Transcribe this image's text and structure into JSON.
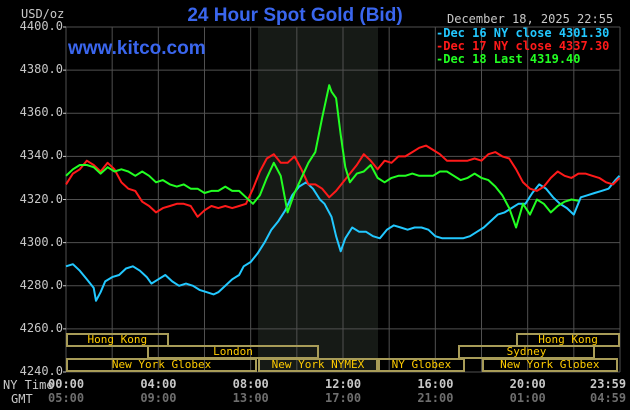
{
  "header": {
    "title": "24 Hour Spot Gold (Bid)",
    "watermark": "www.kitco.com",
    "unit": "USD/oz",
    "datestamp": "December 18, 2025 22:55"
  },
  "legend": [
    {
      "label": "-Dec 16 NY close 4301.30",
      "color": "#22c8ff"
    },
    {
      "label": "-Dec 17 NY close 4337.30",
      "color": "#ff1a1a"
    },
    {
      "label": "-Dec 18 Last 4319.40",
      "color": "#22ff22"
    }
  ],
  "axes": {
    "y_ticks": [
      "4400.0",
      "4380.0",
      "4360.0",
      "4340.0",
      "4320.0",
      "4300.0",
      "4280.0",
      "4260.0",
      "4240.0"
    ],
    "x_row_labels": {
      "ny": "NY Time",
      "gmt": "GMT"
    },
    "x_ticks_ny": [
      "00:00",
      "04:00",
      "08:00",
      "12:00",
      "16:00",
      "20:00",
      "23:59"
    ],
    "x_ticks_gmt": [
      "05:00",
      "09:00",
      "13:00",
      "17:00",
      "21:00",
      "01:00",
      "04:59"
    ]
  },
  "sessions": [
    {
      "label": "Hong Kong",
      "row": 0,
      "start": 0,
      "end": 4.45
    },
    {
      "label": "Hong Kong",
      "row": 0,
      "start": 19.5,
      "end": 24
    },
    {
      "label": "London",
      "row": 1,
      "start": 3.5,
      "end": 10.97
    },
    {
      "label": "Sydney",
      "row": 1,
      "start": 16.98,
      "end": 22.92
    },
    {
      "label": "New York Globex",
      "row": 2,
      "start": 0,
      "end": 8.28
    },
    {
      "label": "New York NYMEX",
      "row": 2,
      "start": 8.33,
      "end": 13.5
    },
    {
      "label": "NY Globex",
      "row": 2,
      "start": 13.52,
      "end": 17.28
    },
    {
      "label": "New York Globex",
      "row": 2,
      "start": 18.02,
      "end": 23.9
    }
  ],
  "colors": {
    "background": "#000000",
    "grid": "#505050",
    "shade": "#161a16",
    "title": "#3a66ee",
    "session_border": "#a89c58",
    "session_text": "#ffcc00"
  },
  "chart_data": {
    "type": "line",
    "title": "24 Hour Spot Gold (Bid)",
    "xlabel": "NY Time",
    "ylabel": "USD/oz",
    "ylim": [
      4240,
      4400
    ],
    "xlim_hours": [
      0,
      24
    ],
    "grid": true,
    "shaded_region_hours": [
      8.33,
      13.5
    ],
    "legend_position": "top-right",
    "series": [
      {
        "name": "Dec 16 NY close 4301.30",
        "color": "#22c8ff",
        "x": [
          0,
          0.3,
          0.6,
          0.9,
          1.2,
          1.3,
          1.5,
          1.7,
          2.0,
          2.3,
          2.6,
          2.9,
          3.2,
          3.5,
          3.7,
          4.0,
          4.3,
          4.6,
          4.9,
          5.2,
          5.5,
          5.8,
          6.1,
          6.4,
          6.6,
          6.9,
          7.2,
          7.5,
          7.7,
          8.0,
          8.3,
          8.6,
          8.9,
          9.2,
          9.5,
          9.8,
          10.1,
          10.4,
          10.7,
          11.0,
          11.2,
          11.5,
          11.7,
          11.9,
          12.1,
          12.4,
          12.7,
          13.0,
          13.3,
          13.6,
          13.9,
          14.2,
          14.5,
          14.8,
          15.1,
          15.4,
          15.7,
          16.0,
          16.3,
          16.6,
          16.9,
          17.2,
          17.5,
          17.8,
          18.1,
          18.4,
          18.7,
          19.0,
          19.3,
          19.6,
          19.9,
          20.2,
          20.5,
          20.8,
          21.1,
          21.4,
          21.7,
          22.0,
          22.3,
          22.6,
          22.9,
          23.2,
          23.5,
          23.8,
          23.98
        ],
        "values": [
          4289,
          4290,
          4287,
          4283,
          4279,
          4273,
          4277,
          4282,
          4284,
          4285,
          4288,
          4289,
          4287,
          4284,
          4281,
          4283,
          4285,
          4282,
          4280,
          4281,
          4280,
          4278,
          4277,
          4276,
          4277,
          4280,
          4283,
          4285,
          4289,
          4291,
          4295,
          4300,
          4306,
          4310,
          4315,
          4322,
          4326,
          4328,
          4325,
          4320,
          4318,
          4312,
          4303,
          4296,
          4302,
          4307,
          4305,
          4305,
          4303,
          4302,
          4306,
          4308,
          4307,
          4306,
          4307,
          4307,
          4306,
          4303,
          4302,
          4302,
          4302,
          4302,
          4303,
          4305,
          4307,
          4310,
          4313,
          4314,
          4316,
          4318,
          4318,
          4323,
          4327,
          4325,
          4321,
          4318,
          4316,
          4313,
          4321,
          4322,
          4323,
          4324,
          4325,
          4329,
          4331
        ]
      },
      {
        "name": "Dec 17 NY close 4337.30",
        "color": "#ff1a1a",
        "x": [
          0,
          0.3,
          0.6,
          0.9,
          1.2,
          1.5,
          1.8,
          2.1,
          2.4,
          2.7,
          3.0,
          3.3,
          3.6,
          3.9,
          4.2,
          4.5,
          4.8,
          5.1,
          5.4,
          5.7,
          6.0,
          6.3,
          6.6,
          6.9,
          7.2,
          7.5,
          7.8,
          8.1,
          8.4,
          8.7,
          9.0,
          9.3,
          9.6,
          9.9,
          10.2,
          10.5,
          10.8,
          11.1,
          11.4,
          11.7,
          12.0,
          12.3,
          12.6,
          12.9,
          13.2,
          13.5,
          13.8,
          14.1,
          14.4,
          14.7,
          15.0,
          15.3,
          15.6,
          15.9,
          16.2,
          16.5,
          16.8,
          17.1,
          17.4,
          17.7,
          18.0,
          18.3,
          18.6,
          18.9,
          19.2,
          19.5,
          19.8,
          20.1,
          20.4,
          20.7,
          21.0,
          21.3,
          21.6,
          21.9,
          22.2,
          22.5,
          22.8,
          23.1,
          23.4,
          23.7,
          23.98
        ],
        "values": [
          4327,
          4332,
          4334,
          4338,
          4336,
          4333,
          4337,
          4334,
          4328,
          4325,
          4324,
          4319,
          4317,
          4314,
          4316,
          4317,
          4318,
          4318,
          4317,
          4312,
          4315,
          4317,
          4316,
          4317,
          4316,
          4317,
          4318,
          4325,
          4333,
          4339,
          4341,
          4337,
          4337,
          4340,
          4334,
          4327,
          4327,
          4325,
          4321,
          4324,
          4328,
          4332,
          4336,
          4341,
          4338,
          4334,
          4338,
          4337,
          4340,
          4340,
          4342,
          4344,
          4345,
          4343,
          4341,
          4338,
          4338,
          4338,
          4338,
          4339,
          4338,
          4341,
          4342,
          4340,
          4339,
          4334,
          4328,
          4325,
          4324,
          4326,
          4330,
          4333,
          4331,
          4330,
          4332,
          4332,
          4331,
          4330,
          4328,
          4327,
          4330
        ]
      },
      {
        "name": "Dec 18 Last 4319.40",
        "color": "#22ff22",
        "x": [
          0,
          0.3,
          0.6,
          0.9,
          1.2,
          1.5,
          1.8,
          2.1,
          2.4,
          2.7,
          3.0,
          3.3,
          3.6,
          3.9,
          4.2,
          4.5,
          4.8,
          5.1,
          5.4,
          5.7,
          6.0,
          6.3,
          6.6,
          6.9,
          7.2,
          7.5,
          7.8,
          8.1,
          8.4,
          8.7,
          9.0,
          9.3,
          9.6,
          9.9,
          10.2,
          10.5,
          10.8,
          11.1,
          11.4,
          11.5,
          11.7,
          11.9,
          12.1,
          12.3,
          12.6,
          12.9,
          13.2,
          13.5,
          13.8,
          14.1,
          14.4,
          14.7,
          15.0,
          15.3,
          15.6,
          15.9,
          16.2,
          16.5,
          16.8,
          17.1,
          17.4,
          17.7,
          18.0,
          18.3,
          18.6,
          18.9,
          19.2,
          19.5,
          19.8,
          20.1,
          20.4,
          20.7,
          21.0,
          21.3,
          21.6,
          21.9,
          22.2
        ],
        "values": [
          4331,
          4334,
          4336,
          4336,
          4335,
          4332,
          4335,
          4333,
          4334,
          4333,
          4331,
          4333,
          4331,
          4328,
          4329,
          4327,
          4326,
          4327,
          4325,
          4325,
          4323,
          4324,
          4324,
          4326,
          4324,
          4324,
          4321,
          4318,
          4322,
          4330,
          4337,
          4331,
          4314,
          4323,
          4330,
          4337,
          4342,
          4358,
          4373,
          4370,
          4367,
          4350,
          4335,
          4328,
          4332,
          4333,
          4336,
          4330,
          4328,
          4330,
          4331,
          4331,
          4332,
          4331,
          4331,
          4331,
          4333,
          4333,
          4331,
          4329,
          4330,
          4332,
          4330,
          4329,
          4326,
          4322,
          4316,
          4307,
          4318,
          4313,
          4320,
          4318,
          4314,
          4317,
          4319,
          4320,
          4319.4
        ]
      }
    ]
  }
}
